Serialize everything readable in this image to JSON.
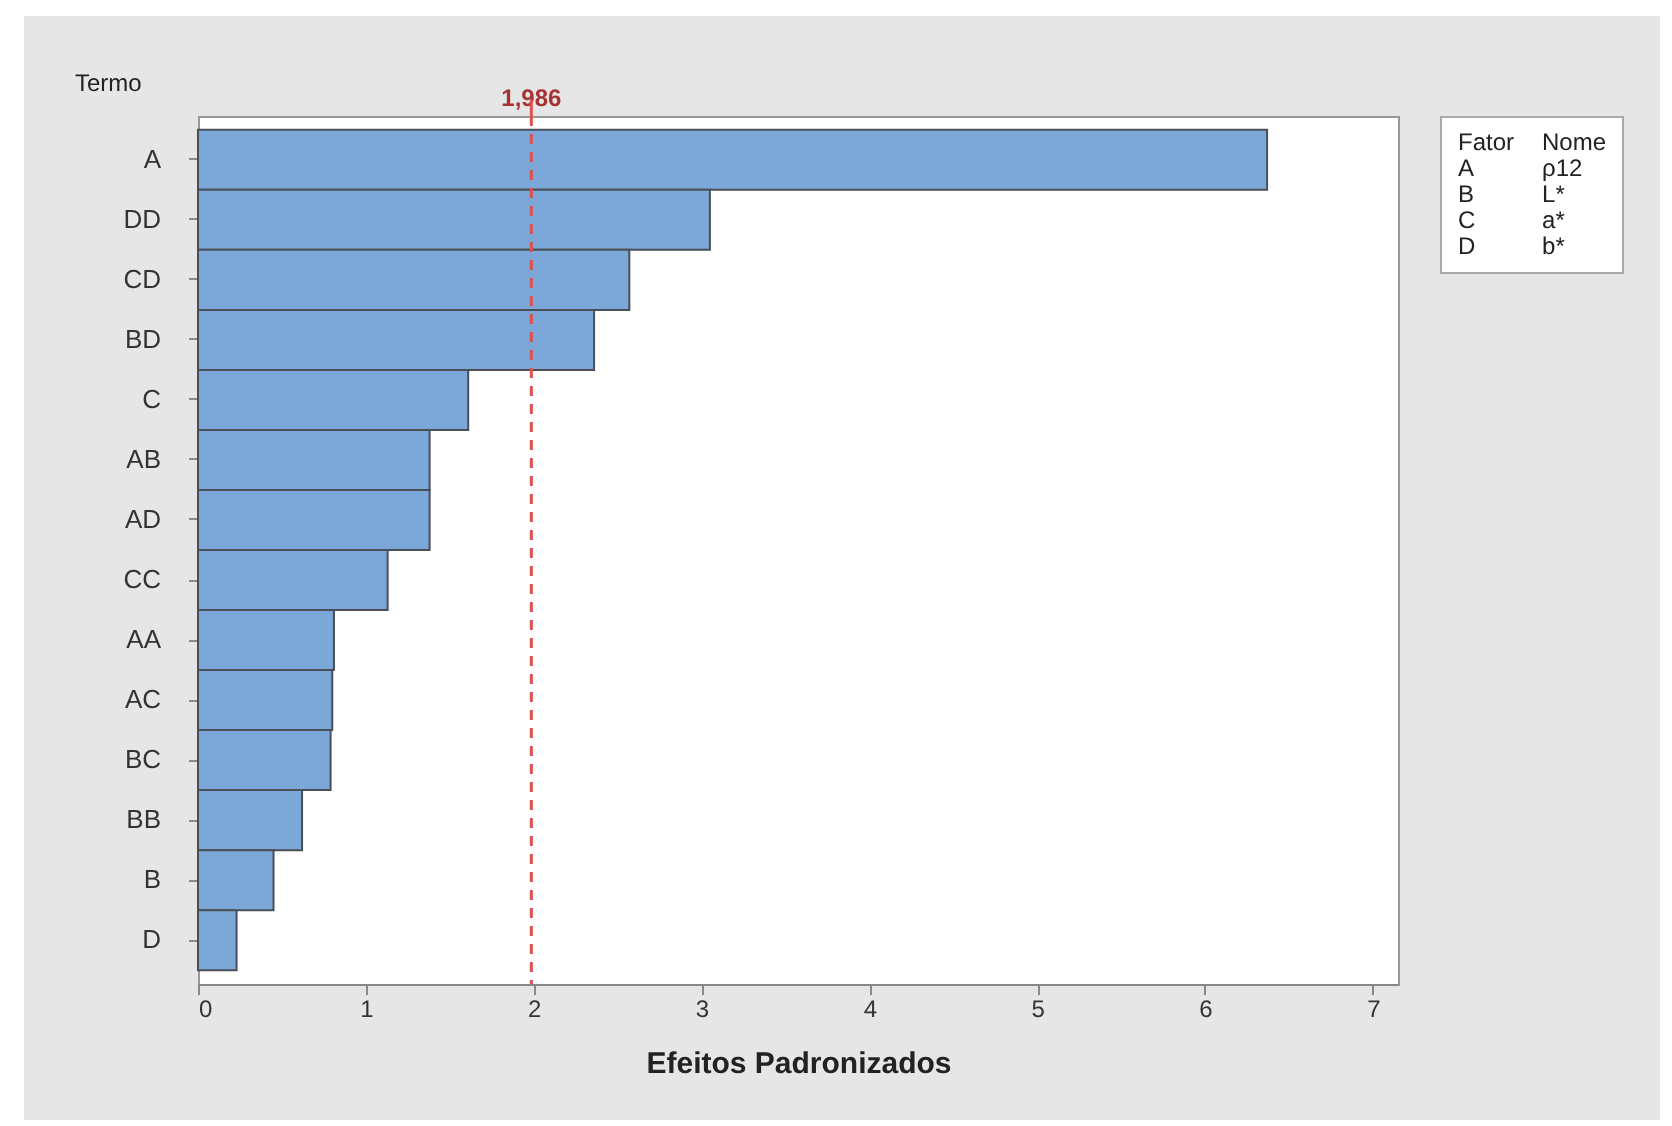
{
  "chart_data": {
    "type": "bar",
    "orientation": "horizontal",
    "xlabel": "Efeitos Padronizados",
    "ylabel": "Termo",
    "categories": [
      "A",
      "DD",
      "CD",
      "BD",
      "C",
      "AB",
      "AD",
      "CC",
      "AA",
      "AC",
      "BC",
      "BB",
      "B",
      "D"
    ],
    "series": [
      {
        "color": "#7ba7d9",
        "values": [
          6.37,
          3.05,
          2.57,
          2.36,
          1.61,
          1.38,
          1.38,
          1.13,
          0.81,
          0.8,
          0.79,
          0.62,
          0.45,
          0.23
        ]
      }
    ],
    "xlim": [
      0,
      7.15
    ],
    "xticks": [
      0,
      1,
      2,
      3,
      4,
      5,
      6,
      7
    ],
    "ref_lines": [
      {
        "axis": "x",
        "value": 1.986,
        "label": "1,986",
        "color": "#e05050",
        "line_style": "dashed"
      }
    ],
    "annotations": [
      "Fator",
      "Nome",
      "A",
      "ρ12",
      "B",
      "L*",
      "C",
      "a*",
      "D",
      "b*"
    ],
    "grid": false
  }
}
